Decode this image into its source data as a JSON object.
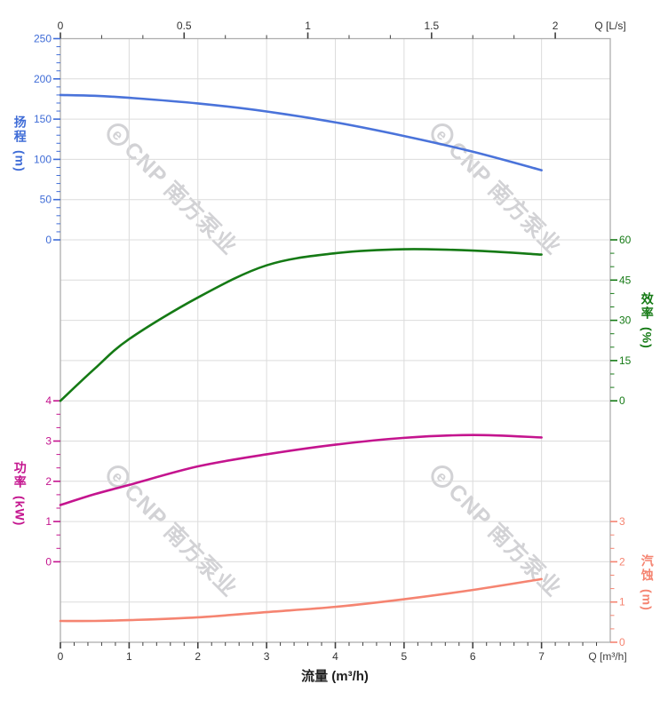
{
  "watermark": {
    "logo": "e",
    "text": "CNP 南方泵业"
  },
  "axes": {
    "x_bottom": {
      "title": "流量 (m³/h)",
      "unit_label": "Q [m³/h]",
      "tick_labels": [
        "0",
        "1",
        "2",
        "3",
        "4",
        "5",
        "6",
        "7"
      ],
      "tick_values": [
        0,
        1,
        2,
        3,
        4,
        5,
        6,
        7
      ],
      "range": [
        0,
        8
      ],
      "minor_step": 0.2
    },
    "x_top": {
      "unit_label": "Q [L/s]",
      "tick_labels": [
        "0",
        "0.5",
        "1",
        "1.5",
        "2"
      ],
      "tick_values": [
        0,
        0.5,
        1,
        1.5,
        2
      ],
      "range": [
        0,
        2.222
      ]
    },
    "y_head": {
      "title": "扬程",
      "unit": "(m)",
      "color": "#3f6cd7",
      "tick_labels": [
        "0",
        "50",
        "100",
        "150",
        "200",
        "250"
      ],
      "tick_values": [
        0,
        50,
        100,
        150,
        200,
        250
      ],
      "minor_step": 10,
      "range": [
        0,
        250
      ]
    },
    "y_eff": {
      "title": "效率",
      "unit": "(%)",
      "color": "#157a15",
      "tick_labels": [
        "0",
        "15",
        "30",
        "45",
        "60"
      ],
      "tick_values": [
        0,
        15,
        30,
        45,
        60
      ],
      "minor_step": 5,
      "range": [
        0,
        60
      ]
    },
    "y_power": {
      "title": "功率",
      "unit": "(kW)",
      "color": "#c4148e",
      "tick_labels": [
        "0",
        "1",
        "2",
        "3",
        "4"
      ],
      "tick_values": [
        0,
        1,
        2,
        3,
        4
      ],
      "minor_step": 0.3333,
      "range": [
        0,
        4
      ]
    },
    "y_npsh": {
      "title": "汽蚀",
      "unit": "(m)",
      "color": "#f58471",
      "tick_labels": [
        "0",
        "1",
        "2",
        "3"
      ],
      "tick_values": [
        0,
        1,
        2,
        3
      ],
      "minor_step": 0.3333,
      "range": [
        0,
        3
      ]
    }
  },
  "chart_data": {
    "type": "line",
    "title": "",
    "xlabel": "流量 (m³/h)",
    "x_unit_top": "Q [L/s]",
    "x_unit_bottom": "Q [m³/h]",
    "x": [
      0,
      0.5,
      1,
      2,
      3,
      4,
      5,
      6,
      7
    ],
    "x_range_m3h": [
      0,
      8
    ],
    "x_range_Ls": [
      0,
      2.222
    ],
    "grid": true,
    "series": [
      {
        "id": "head",
        "name": "扬程",
        "axis": "y_head",
        "color": "#4a73da",
        "values": [
          180,
          179,
          176.5,
          169.5,
          159.5,
          146,
          129,
          109.5,
          86.5
        ]
      },
      {
        "id": "eff",
        "name": "效率",
        "axis": "y_eff",
        "color": "#157a15",
        "values": [
          0,
          12,
          23,
          38.5,
          50.5,
          55,
          56.5,
          56,
          54.5
        ]
      },
      {
        "id": "power",
        "name": "功率",
        "axis": "y_power",
        "color": "#c4148e",
        "values": [
          1.41,
          1.68,
          1.91,
          2.37,
          2.67,
          2.91,
          3.08,
          3.15,
          3.09
        ]
      },
      {
        "id": "npsh",
        "name": "汽蚀",
        "axis": "y_npsh",
        "color": "#f58471",
        "values": [
          0.53,
          0.53,
          0.55,
          0.62,
          0.75,
          0.88,
          1.07,
          1.3,
          1.57
        ]
      }
    ]
  }
}
